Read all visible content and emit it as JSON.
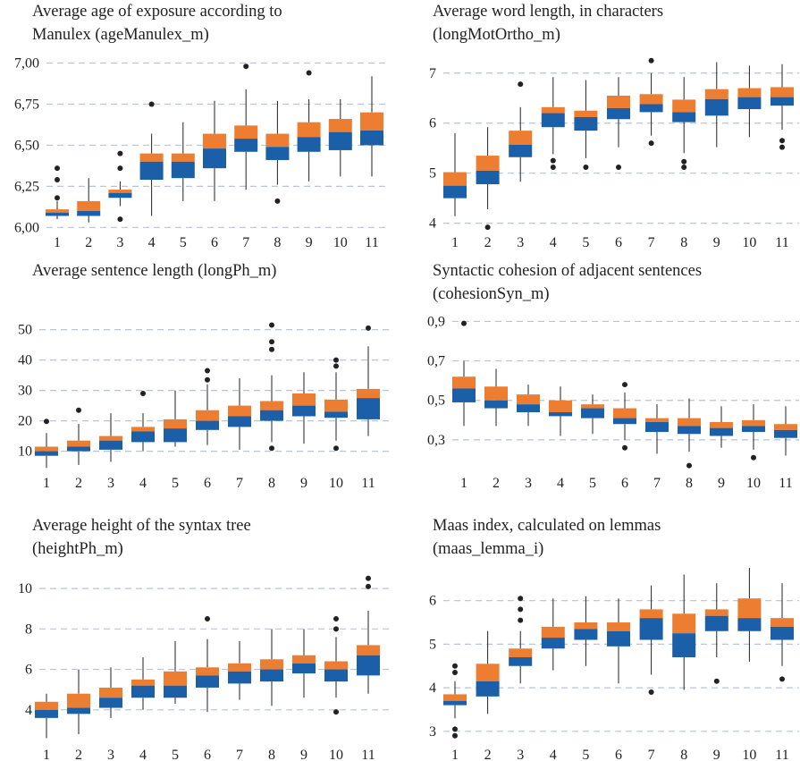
{
  "colors": {
    "upper": "#ED7D31",
    "lower": "#1A5FA8",
    "grid": "#B8C4D8",
    "whisker": "#222222"
  },
  "chart_data": [
    {
      "type": "box",
      "title_lines": [
        "Average age of exposure according to",
        "Manulex (ageManulex_m)"
      ],
      "categories": [
        "1",
        "2",
        "3",
        "4",
        "5",
        "6",
        "7",
        "8",
        "9",
        "10",
        "11"
      ],
      "ylim": [
        5.98,
        7.03
      ],
      "yticks": [
        6.0,
        6.25,
        6.5,
        6.75,
        7.0
      ],
      "ytick_labels": [
        "6,00",
        "6,25",
        "6,50",
        "6,75",
        "7,00"
      ],
      "grid": true,
      "boxes": [
        {
          "q1": 6.07,
          "median": 6.09,
          "q3": 6.11,
          "wlo": 6.05,
          "whi": 6.16,
          "outliers": [
            6.18,
            6.29,
            6.36
          ]
        },
        {
          "q1": 6.07,
          "median": 6.1,
          "q3": 6.16,
          "wlo": 6.03,
          "whi": 6.3,
          "outliers": []
        },
        {
          "q1": 6.18,
          "median": 6.21,
          "q3": 6.23,
          "wlo": 6.13,
          "whi": 6.28,
          "outliers": [
            6.05,
            6.36,
            6.45
          ]
        },
        {
          "q1": 6.29,
          "median": 6.4,
          "q3": 6.45,
          "wlo": 6.07,
          "whi": 6.57,
          "outliers": [
            6.75
          ]
        },
        {
          "q1": 6.3,
          "median": 6.4,
          "q3": 6.45,
          "wlo": 6.16,
          "whi": 6.64,
          "outliers": []
        },
        {
          "q1": 6.36,
          "median": 6.48,
          "q3": 6.57,
          "wlo": 6.16,
          "whi": 6.77,
          "outliers": []
        },
        {
          "q1": 6.46,
          "median": 6.54,
          "q3": 6.62,
          "wlo": 6.23,
          "whi": 6.84,
          "outliers": [
            6.98
          ]
        },
        {
          "q1": 6.41,
          "median": 6.49,
          "q3": 6.57,
          "wlo": 6.26,
          "whi": 6.77,
          "outliers": [
            6.16
          ]
        },
        {
          "q1": 6.46,
          "median": 6.55,
          "q3": 6.64,
          "wlo": 6.28,
          "whi": 6.78,
          "outliers": [
            6.94
          ]
        },
        {
          "q1": 6.47,
          "median": 6.58,
          "q3": 6.66,
          "wlo": 6.31,
          "whi": 6.78,
          "outliers": []
        },
        {
          "q1": 6.5,
          "median": 6.59,
          "q3": 6.7,
          "wlo": 6.31,
          "whi": 6.92,
          "outliers": []
        }
      ]
    },
    {
      "type": "box",
      "title_lines": [
        "Average word length, in characters",
        "(longMotOrtho_m)"
      ],
      "categories": [
        "1",
        "2",
        "3",
        "4",
        "5",
        "6",
        "7",
        "8",
        "9",
        "10",
        "11"
      ],
      "ylim": [
        3.85,
        7.3
      ],
      "yticks": [
        4,
        5,
        6,
        7
      ],
      "ytick_labels": [
        "4",
        "5",
        "6",
        "7"
      ],
      "grid": true,
      "boxes": [
        {
          "q1": 4.5,
          "median": 4.75,
          "q3": 5.02,
          "wlo": 4.14,
          "whi": 5.8,
          "outliers": []
        },
        {
          "q1": 4.78,
          "median": 5.05,
          "q3": 5.35,
          "wlo": 4.28,
          "whi": 5.92,
          "outliers": [
            3.92
          ]
        },
        {
          "q1": 5.32,
          "median": 5.57,
          "q3": 5.85,
          "wlo": 4.83,
          "whi": 6.32,
          "outliers": [
            6.78
          ]
        },
        {
          "q1": 5.92,
          "median": 6.2,
          "q3": 6.32,
          "wlo": 5.38,
          "whi": 6.92,
          "outliers": [
            5.12,
            5.25
          ]
        },
        {
          "q1": 5.85,
          "median": 6.12,
          "q3": 6.25,
          "wlo": 5.3,
          "whi": 6.86,
          "outliers": [
            5.12
          ]
        },
        {
          "q1": 6.08,
          "median": 6.3,
          "q3": 6.55,
          "wlo": 5.52,
          "whi": 6.92,
          "outliers": [
            5.12
          ]
        },
        {
          "q1": 6.22,
          "median": 6.38,
          "q3": 6.58,
          "wlo": 5.75,
          "whi": 7.0,
          "outliers": [
            5.6,
            7.25
          ]
        },
        {
          "q1": 6.02,
          "median": 6.22,
          "q3": 6.47,
          "wlo": 5.4,
          "whi": 6.92,
          "outliers": [
            5.12,
            5.23
          ]
        },
        {
          "q1": 6.15,
          "median": 6.48,
          "q3": 6.68,
          "wlo": 5.52,
          "whi": 7.22,
          "outliers": []
        },
        {
          "q1": 6.28,
          "median": 6.52,
          "q3": 6.7,
          "wlo": 5.72,
          "whi": 7.15,
          "outliers": []
        },
        {
          "q1": 6.35,
          "median": 6.52,
          "q3": 6.72,
          "wlo": 5.87,
          "whi": 7.18,
          "outliers": [
            5.52,
            5.65
          ]
        }
      ]
    },
    {
      "type": "box",
      "title_lines": [
        "Average sentence length (longPh_m)"
      ],
      "categories": [
        "1",
        "2",
        "3",
        "4",
        "5",
        "6",
        "7",
        "8",
        "9",
        "10",
        "11"
      ],
      "ylim": [
        4,
        54
      ],
      "yticks": [
        10,
        20,
        30,
        40,
        50
      ],
      "ytick_labels": [
        "10",
        "20",
        "30",
        "40",
        "50"
      ],
      "grid": true,
      "boxes": [
        {
          "q1": 8.5,
          "median": 10.0,
          "q3": 11.5,
          "wlo": 4.5,
          "whi": 16.0,
          "outliers": [
            19.8
          ]
        },
        {
          "q1": 10.0,
          "median": 11.5,
          "q3": 13.5,
          "wlo": 5.5,
          "whi": 19.0,
          "outliers": [
            23.5
          ]
        },
        {
          "q1": 10.5,
          "median": 13.5,
          "q3": 15.0,
          "wlo": 6.5,
          "whi": 22.5,
          "outliers": []
        },
        {
          "q1": 13.0,
          "median": 16.5,
          "q3": 18.0,
          "wlo": 10.0,
          "whi": 22.5,
          "outliers": [
            29.0
          ]
        },
        {
          "q1": 13.0,
          "median": 17.5,
          "q3": 20.5,
          "wlo": 11.5,
          "whi": 30.0,
          "outliers": []
        },
        {
          "q1": 17.0,
          "median": 20.0,
          "q3": 23.5,
          "wlo": 12.0,
          "whi": 32.0,
          "outliers": [
            33.5,
            36.5
          ]
        },
        {
          "q1": 18.0,
          "median": 21.5,
          "q3": 25.0,
          "wlo": 10.5,
          "whi": 34.0,
          "outliers": []
        },
        {
          "q1": 20.0,
          "median": 23.5,
          "q3": 26.5,
          "wlo": 13.0,
          "whi": 35.0,
          "outliers": [
            11.0,
            43.5,
            46.0,
            51.5
          ]
        },
        {
          "q1": 21.5,
          "median": 25.0,
          "q3": 29.0,
          "wlo": 12.5,
          "whi": 36.0,
          "outliers": []
        },
        {
          "q1": 21.0,
          "median": 23.0,
          "q3": 27.0,
          "wlo": 13.5,
          "whi": 36.0,
          "outliers": [
            11.0,
            38.0,
            40.0
          ]
        },
        {
          "q1": 20.5,
          "median": 27.5,
          "q3": 30.5,
          "wlo": 15.0,
          "whi": 44.5,
          "outliers": [
            50.5
          ]
        }
      ]
    },
    {
      "type": "box",
      "title_lines": [
        "Syntactic cohesion of adjacent sentences",
        "(cohesionSyn_m)"
      ],
      "categories": [
        "1",
        "2",
        "3",
        "4",
        "5",
        "6",
        "7",
        "8",
        "9",
        "10",
        "11"
      ],
      "ylim": [
        0.15,
        0.92
      ],
      "yticks": [
        0.3,
        0.5,
        0.7,
        0.9
      ],
      "ytick_labels": [
        "0,3",
        "0,5",
        "0,7",
        "0,9"
      ],
      "grid": true,
      "boxes": [
        {
          "q1": 0.49,
          "median": 0.56,
          "q3": 0.62,
          "wlo": 0.37,
          "whi": 0.7,
          "outliers": [
            0.89
          ]
        },
        {
          "q1": 0.46,
          "median": 0.5,
          "q3": 0.57,
          "wlo": 0.37,
          "whi": 0.66,
          "outliers": []
        },
        {
          "q1": 0.44,
          "median": 0.48,
          "q3": 0.53,
          "wlo": 0.37,
          "whi": 0.58,
          "outliers": []
        },
        {
          "q1": 0.42,
          "median": 0.44,
          "q3": 0.5,
          "wlo": 0.32,
          "whi": 0.57,
          "outliers": []
        },
        {
          "q1": 0.41,
          "median": 0.46,
          "q3": 0.48,
          "wlo": 0.33,
          "whi": 0.53,
          "outliers": []
        },
        {
          "q1": 0.38,
          "median": 0.41,
          "q3": 0.46,
          "wlo": 0.3,
          "whi": 0.54,
          "outliers": [
            0.26,
            0.58
          ]
        },
        {
          "q1": 0.34,
          "median": 0.39,
          "q3": 0.41,
          "wlo": 0.23,
          "whi": 0.48,
          "outliers": []
        },
        {
          "q1": 0.33,
          "median": 0.37,
          "q3": 0.41,
          "wlo": 0.24,
          "whi": 0.51,
          "outliers": [
            0.17
          ]
        },
        {
          "q1": 0.32,
          "median": 0.36,
          "q3": 0.39,
          "wlo": 0.26,
          "whi": 0.47,
          "outliers": []
        },
        {
          "q1": 0.34,
          "median": 0.37,
          "q3": 0.4,
          "wlo": 0.25,
          "whi": 0.48,
          "outliers": [
            0.21
          ]
        },
        {
          "q1": 0.31,
          "median": 0.35,
          "q3": 0.38,
          "wlo": 0.22,
          "whi": 0.47,
          "outliers": []
        }
      ]
    },
    {
      "type": "box",
      "title_lines": [
        "Average height of the syntax tree",
        "(heightPh_m)"
      ],
      "categories": [
        "1",
        "2",
        "3",
        "4",
        "5",
        "6",
        "7",
        "8",
        "9",
        "10",
        "11"
      ],
      "ylim": [
        2.4,
        10.8
      ],
      "yticks": [
        4,
        6,
        8,
        10
      ],
      "ytick_labels": [
        "4",
        "6",
        "8",
        "10"
      ],
      "grid": true,
      "boxes": [
        {
          "q1": 3.6,
          "median": 4.0,
          "q3": 4.4,
          "wlo": 2.6,
          "whi": 4.8,
          "outliers": []
        },
        {
          "q1": 3.8,
          "median": 4.1,
          "q3": 4.8,
          "wlo": 2.8,
          "whi": 6.0,
          "outliers": []
        },
        {
          "q1": 4.1,
          "median": 4.6,
          "q3": 5.1,
          "wlo": 3.6,
          "whi": 6.1,
          "outliers": []
        },
        {
          "q1": 4.6,
          "median": 5.2,
          "q3": 5.5,
          "wlo": 4.0,
          "whi": 6.6,
          "outliers": []
        },
        {
          "q1": 4.6,
          "median": 5.2,
          "q3": 5.9,
          "wlo": 4.3,
          "whi": 7.4,
          "outliers": []
        },
        {
          "q1": 5.1,
          "median": 5.7,
          "q3": 6.1,
          "wlo": 3.9,
          "whi": 7.5,
          "outliers": [
            8.5
          ]
        },
        {
          "q1": 5.3,
          "median": 5.9,
          "q3": 6.3,
          "wlo": 4.5,
          "whi": 7.4,
          "outliers": []
        },
        {
          "q1": 5.4,
          "median": 6.0,
          "q3": 6.5,
          "wlo": 4.2,
          "whi": 8.0,
          "outliers": []
        },
        {
          "q1": 5.8,
          "median": 6.3,
          "q3": 6.7,
          "wlo": 4.6,
          "whi": 8.0,
          "outliers": []
        },
        {
          "q1": 5.4,
          "median": 6.0,
          "q3": 6.4,
          "wlo": 4.6,
          "whi": 7.6,
          "outliers": [
            3.9,
            8.0,
            8.5
          ]
        },
        {
          "q1": 5.7,
          "median": 6.7,
          "q3": 7.2,
          "wlo": 4.8,
          "whi": 8.9,
          "outliers": [
            10.1,
            10.5
          ]
        }
      ]
    },
    {
      "type": "box",
      "title_lines": [
        "Maas index, calculated on lemmas",
        "(maas_lemma_i)"
      ],
      "categories": [
        "1",
        "2",
        "3",
        "4",
        "5",
        "6",
        "7",
        "8",
        "9",
        "10",
        "11"
      ],
      "ylim": [
        2.75,
        6.65
      ],
      "yticks": [
        3,
        4,
        5,
        6
      ],
      "ytick_labels": [
        "3",
        "4",
        "5",
        "6"
      ],
      "grid": true,
      "boxes": [
        {
          "q1": 3.6,
          "median": 3.7,
          "q3": 3.85,
          "wlo": 3.3,
          "whi": 4.15,
          "outliers": [
            2.9,
            3.05,
            4.35,
            4.5
          ]
        },
        {
          "q1": 3.8,
          "median": 4.15,
          "q3": 4.55,
          "wlo": 3.4,
          "whi": 5.3,
          "outliers": []
        },
        {
          "q1": 4.5,
          "median": 4.7,
          "q3": 4.9,
          "wlo": 4.1,
          "whi": 5.3,
          "outliers": [
            5.55,
            5.8,
            6.05
          ]
        },
        {
          "q1": 4.9,
          "median": 5.15,
          "q3": 5.4,
          "wlo": 4.4,
          "whi": 6.05,
          "outliers": []
        },
        {
          "q1": 5.1,
          "median": 5.35,
          "q3": 5.5,
          "wlo": 4.5,
          "whi": 6.1,
          "outliers": []
        },
        {
          "q1": 4.95,
          "median": 5.3,
          "q3": 5.5,
          "wlo": 4.1,
          "whi": 6.05,
          "outliers": []
        },
        {
          "q1": 5.1,
          "median": 5.6,
          "q3": 5.8,
          "wlo": 4.3,
          "whi": 6.35,
          "outliers": [
            3.9
          ]
        },
        {
          "q1": 4.7,
          "median": 5.25,
          "q3": 5.7,
          "wlo": 3.95,
          "whi": 6.6,
          "outliers": []
        },
        {
          "q1": 5.3,
          "median": 5.65,
          "q3": 5.8,
          "wlo": 4.7,
          "whi": 6.4,
          "outliers": [
            4.15
          ]
        },
        {
          "q1": 5.3,
          "median": 5.6,
          "q3": 6.05,
          "wlo": 4.6,
          "whi": 6.75,
          "outliers": []
        },
        {
          "q1": 5.1,
          "median": 5.4,
          "q3": 5.6,
          "wlo": 4.5,
          "whi": 6.4,
          "outliers": [
            4.2
          ]
        }
      ]
    }
  ]
}
